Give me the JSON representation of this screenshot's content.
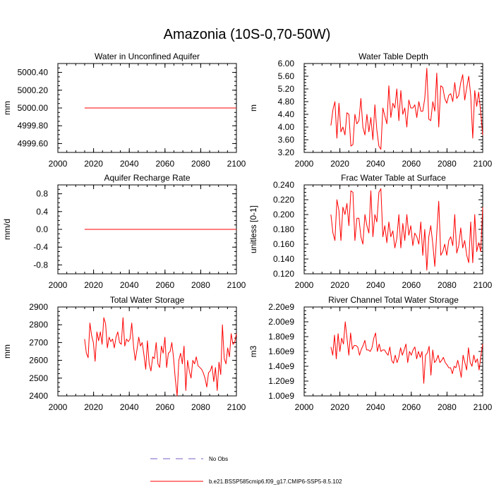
{
  "figure": {
    "title": "Amazonia (10S-0,70-50W)",
    "colors": {
      "series": "#ff0000",
      "obs": "#7a5cc4",
      "axis": "#000000"
    }
  },
  "legend": {
    "entries": [
      {
        "label": "No Obs",
        "style": "dashed",
        "color": "#7a5cc4"
      },
      {
        "label": "b.e21.BSSP585cmip6.f09_g17.CMIP6-SSP5-8.5.102",
        "style": "solid",
        "color": "#ff0000"
      }
    ]
  },
  "chart_data": [
    {
      "type": "line",
      "title": "Water in Unconfined Aquifer",
      "xlabel": "",
      "ylabel": "mm",
      "xlim": [
        2000,
        2100
      ],
      "ylim": [
        4999.5,
        5000.5
      ],
      "xticks": [
        2000,
        2020,
        2040,
        2060,
        2080,
        2100
      ],
      "xtick_labels": [
        "2000",
        "2020",
        "2040",
        "2060",
        "2080",
        "2100"
      ],
      "yticks": [
        4999.6,
        4999.8,
        5000.0,
        5000.2,
        5000.4
      ],
      "ytick_labels": [
        "4999.60",
        "4999.80",
        "5000.00",
        "5000.20",
        "5000.40"
      ],
      "series": [
        {
          "name": "b.e21.BSSP585cmip6.f09_g17.CMIP6-SSP5-8.5.102",
          "x": [
            2015,
            2100
          ],
          "values": [
            5000.0,
            5000.0
          ]
        }
      ]
    },
    {
      "type": "line",
      "title": "Water Table Depth",
      "xlabel": "",
      "ylabel": "m",
      "xlim": [
        2000,
        2100
      ],
      "ylim": [
        3.2,
        6.0
      ],
      "xticks": [
        2000,
        2020,
        2040,
        2060,
        2080,
        2100
      ],
      "xtick_labels": [
        "2000",
        "2020",
        "2040",
        "2060",
        "2080",
        "2100"
      ],
      "yticks": [
        3.2,
        3.6,
        4.0,
        4.4,
        4.8,
        5.2,
        5.6,
        6.0
      ],
      "ytick_labels": [
        "3.20",
        "3.60",
        "4.00",
        "4.40",
        "4.80",
        "5.20",
        "5.60",
        "6.00"
      ],
      "series": [
        {
          "name": "b.e21.BSSP585cmip6.f09_g17.CMIP6-SSP5-8.5.102",
          "x_start": 2015,
          "values": [
            4.05,
            4.55,
            4.8,
            3.65,
            4.75,
            3.85,
            4.0,
            3.75,
            4.45,
            4.4,
            3.4,
            3.45,
            4.4,
            4.1,
            4.2,
            4.9,
            4.0,
            3.75,
            4.4,
            3.85,
            4.3,
            3.6,
            4.7,
            3.9,
            3.4,
            3.3,
            4.6,
            4.35,
            4.1,
            5.3,
            4.3,
            4.75,
            4.6,
            5.2,
            4.2,
            5.15,
            4.4,
            4.6,
            4.0,
            4.85,
            4.6,
            4.6,
            4.7,
            4.3,
            4.8,
            4.5,
            4.5,
            4.9,
            5.85,
            4.25,
            4.2,
            4.8,
            4.5,
            5.7,
            4.0,
            5.3,
            5.25,
            4.9,
            4.75,
            5.0,
            5.05,
            4.8,
            5.4,
            4.9,
            5.0,
            5.4,
            5.65,
            4.85,
            5.25,
            5.6,
            5.0,
            3.65,
            5.15,
            4.65,
            5.1,
            4.45,
            3.75
          ]
        }
      ]
    },
    {
      "type": "line",
      "title": "Aquifer Recharge Rate",
      "xlabel": "",
      "ylabel": "mm/d",
      "xlim": [
        2000,
        2100
      ],
      "ylim": [
        -1.0,
        1.0
      ],
      "xticks": [
        2000,
        2020,
        2040,
        2060,
        2080,
        2100
      ],
      "xtick_labels": [
        "2000",
        "2020",
        "2040",
        "2060",
        "2080",
        "2100"
      ],
      "yticks": [
        -0.8,
        -0.4,
        0.0,
        0.4,
        0.8
      ],
      "ytick_labels": [
        "-0.8",
        "-0.4",
        "0.0",
        "0.4",
        "0.8"
      ],
      "series": [
        {
          "name": "b.e21.BSSP585cmip6.f09_g17.CMIP6-SSP5-8.5.102",
          "x": [
            2015,
            2100
          ],
          "values": [
            0.0,
            0.0
          ]
        }
      ]
    },
    {
      "type": "line",
      "title": "Frac Water Table at Surface",
      "xlabel": "",
      "ylabel": "unitless [0-1]",
      "xlim": [
        2000,
        2100
      ],
      "ylim": [
        0.12,
        0.24
      ],
      "xticks": [
        2000,
        2020,
        2040,
        2060,
        2080,
        2100
      ],
      "xtick_labels": [
        "2000",
        "2020",
        "2040",
        "2060",
        "2080",
        "2100"
      ],
      "yticks": [
        0.12,
        0.14,
        0.16,
        0.18,
        0.2,
        0.22,
        0.24
      ],
      "ytick_labels": [
        "0.120",
        "0.140",
        "0.160",
        "0.180",
        "0.200",
        "0.220",
        "0.240"
      ],
      "series": [
        {
          "name": "b.e21.BSSP585cmip6.f09_g17.CMIP6-SSP5-8.5.102",
          "x_start": 2015,
          "values": [
            0.2,
            0.175,
            0.165,
            0.22,
            0.205,
            0.165,
            0.21,
            0.2,
            0.215,
            0.185,
            0.232,
            0.23,
            0.165,
            0.195,
            0.195,
            0.17,
            0.16,
            0.2,
            0.185,
            0.175,
            0.232,
            0.17,
            0.2,
            0.19,
            0.23,
            0.235,
            0.17,
            0.185,
            0.162,
            0.19,
            0.17,
            0.178,
            0.155,
            0.168,
            0.2,
            0.155,
            0.188,
            0.165,
            0.2,
            0.172,
            0.185,
            0.158,
            0.175,
            0.17,
            0.16,
            0.19,
            0.145,
            0.18,
            0.125,
            0.17,
            0.185,
            0.16,
            0.13,
            0.175,
            0.218,
            0.145,
            0.15,
            0.16,
            0.145,
            0.165,
            0.17,
            0.158,
            0.2,
            0.148,
            0.158,
            0.182,
            0.155,
            0.165,
            0.145,
            0.135,
            0.19,
            0.135,
            0.2,
            0.15,
            0.162,
            0.15,
            0.21
          ]
        }
      ]
    },
    {
      "type": "line",
      "title": "Total Water Storage",
      "xlabel": "",
      "ylabel": "mm",
      "xlim": [
        2000,
        2100
      ],
      "ylim": [
        2400,
        2900
      ],
      "xticks": [
        2000,
        2020,
        2040,
        2060,
        2080,
        2100
      ],
      "xtick_labels": [
        "2000",
        "2020",
        "2040",
        "2060",
        "2080",
        "2100"
      ],
      "yticks": [
        2400,
        2500,
        2600,
        2700,
        2800,
        2900
      ],
      "ytick_labels": [
        "2400",
        "2500",
        "2600",
        "2700",
        "2800",
        "2900"
      ],
      "series": [
        {
          "name": "b.e21.BSSP585cmip6.f09_g17.CMIP6-SSP5-8.5.102",
          "x_start": 2015,
          "values": [
            2720,
            2640,
            2615,
            2810,
            2740,
            2700,
            2595,
            2760,
            2710,
            2760,
            2690,
            2840,
            2805,
            2670,
            2730,
            2705,
            2720,
            2670,
            2730,
            2760,
            2700,
            2690,
            2840,
            2680,
            2720,
            2705,
            2720,
            2810,
            2680,
            2600,
            2660,
            2730,
            2680,
            2700,
            2630,
            2550,
            2710,
            2580,
            2540,
            2620,
            2610,
            2700,
            2580,
            2560,
            2680,
            2640,
            2730,
            2560,
            2640,
            2650,
            2700,
            2610,
            2490,
            2400,
            2600,
            2640,
            2580,
            2680,
            2430,
            2600,
            2540,
            2500,
            2600,
            2580,
            2620,
            2570,
            2560,
            2550,
            2530,
            2500,
            2450,
            2530,
            2540,
            2570,
            2480,
            2560,
            2430,
            2590,
            2520,
            2800,
            2610,
            2580,
            2670,
            2620,
            2750,
            2690,
            2700,
            2750
          ]
        }
      ]
    },
    {
      "type": "line",
      "title": "River Channel Total Water Storage",
      "xlabel": "",
      "ylabel": "m3",
      "xlim": [
        2000,
        2100
      ],
      "ylim": [
        1000000000.0,
        2200000000.0
      ],
      "xticks": [
        2000,
        2020,
        2040,
        2060,
        2080,
        2100
      ],
      "xtick_labels": [
        "2000",
        "2020",
        "2040",
        "2060",
        "2080",
        "2100"
      ],
      "yticks": [
        1000000000.0,
        1200000000.0,
        1400000000.0,
        1600000000.0,
        1800000000.0,
        2000000000.0,
        2200000000.0
      ],
      "ytick_labels": [
        "1.00e9",
        "1.20e9",
        "1.40e9",
        "1.60e9",
        "1.80e9",
        "2.00e9",
        "2.20e9"
      ],
      "series": [
        {
          "name": "b.e21.BSSP585cmip6.f09_g17.CMIP6-SSP5-8.5.102",
          "x_start": 2015,
          "values": [
            1660000000.0,
            1550000000.0,
            1820000000.0,
            1500000000.0,
            1840000000.0,
            1600000000.0,
            1780000000.0,
            1700000000.0,
            2000000000.0,
            1780000000.0,
            1550000000.0,
            1850000000.0,
            1630000000.0,
            1680000000.0,
            1680000000.0,
            1660000000.0,
            1550000000.0,
            1630000000.0,
            1680000000.0,
            1750000000.0,
            1620000000.0,
            1620000000.0,
            1600000000.0,
            1650000000.0,
            1780000000.0,
            1850000000.0,
            1600000000.0,
            1700000000.0,
            1600000000.0,
            1620000000.0,
            1620000000.0,
            1580000000.0,
            1550000000.0,
            1660000000.0,
            1480000000.0,
            1440000000.0,
            1550000000.0,
            1450000000.0,
            1520000000.0,
            1650000000.0,
            1550000000.0,
            1620000000.0,
            1700000000.0,
            1450000000.0,
            1600000000.0,
            1550000000.0,
            1620000000.0,
            1660000000.0,
            1500000000.0,
            1600000000.0,
            1520000000.0,
            1600000000.0,
            1170000000.0,
            1550000000.0,
            1580000000.0,
            1670000000.0,
            1280000000.0,
            1620000000.0,
            1450000000.0,
            1480000000.0,
            1550000000.0,
            1450000000.0,
            1480000000.0,
            1520000000.0,
            1450000000.0,
            1420000000.0,
            1380000000.0,
            1380000000.0,
            1300000000.0,
            1400000000.0,
            1380000000.0,
            1480000000.0,
            1380000000.0,
            1250000000.0,
            1550000000.0,
            1450000000.0,
            1350000000.0,
            1650000000.0,
            1450000000.0,
            1400000000.0,
            1550000000.0,
            1450000000.0,
            1500000000.0,
            1350000000.0,
            1550000000.0,
            1700000000.0
          ]
        }
      ]
    }
  ]
}
